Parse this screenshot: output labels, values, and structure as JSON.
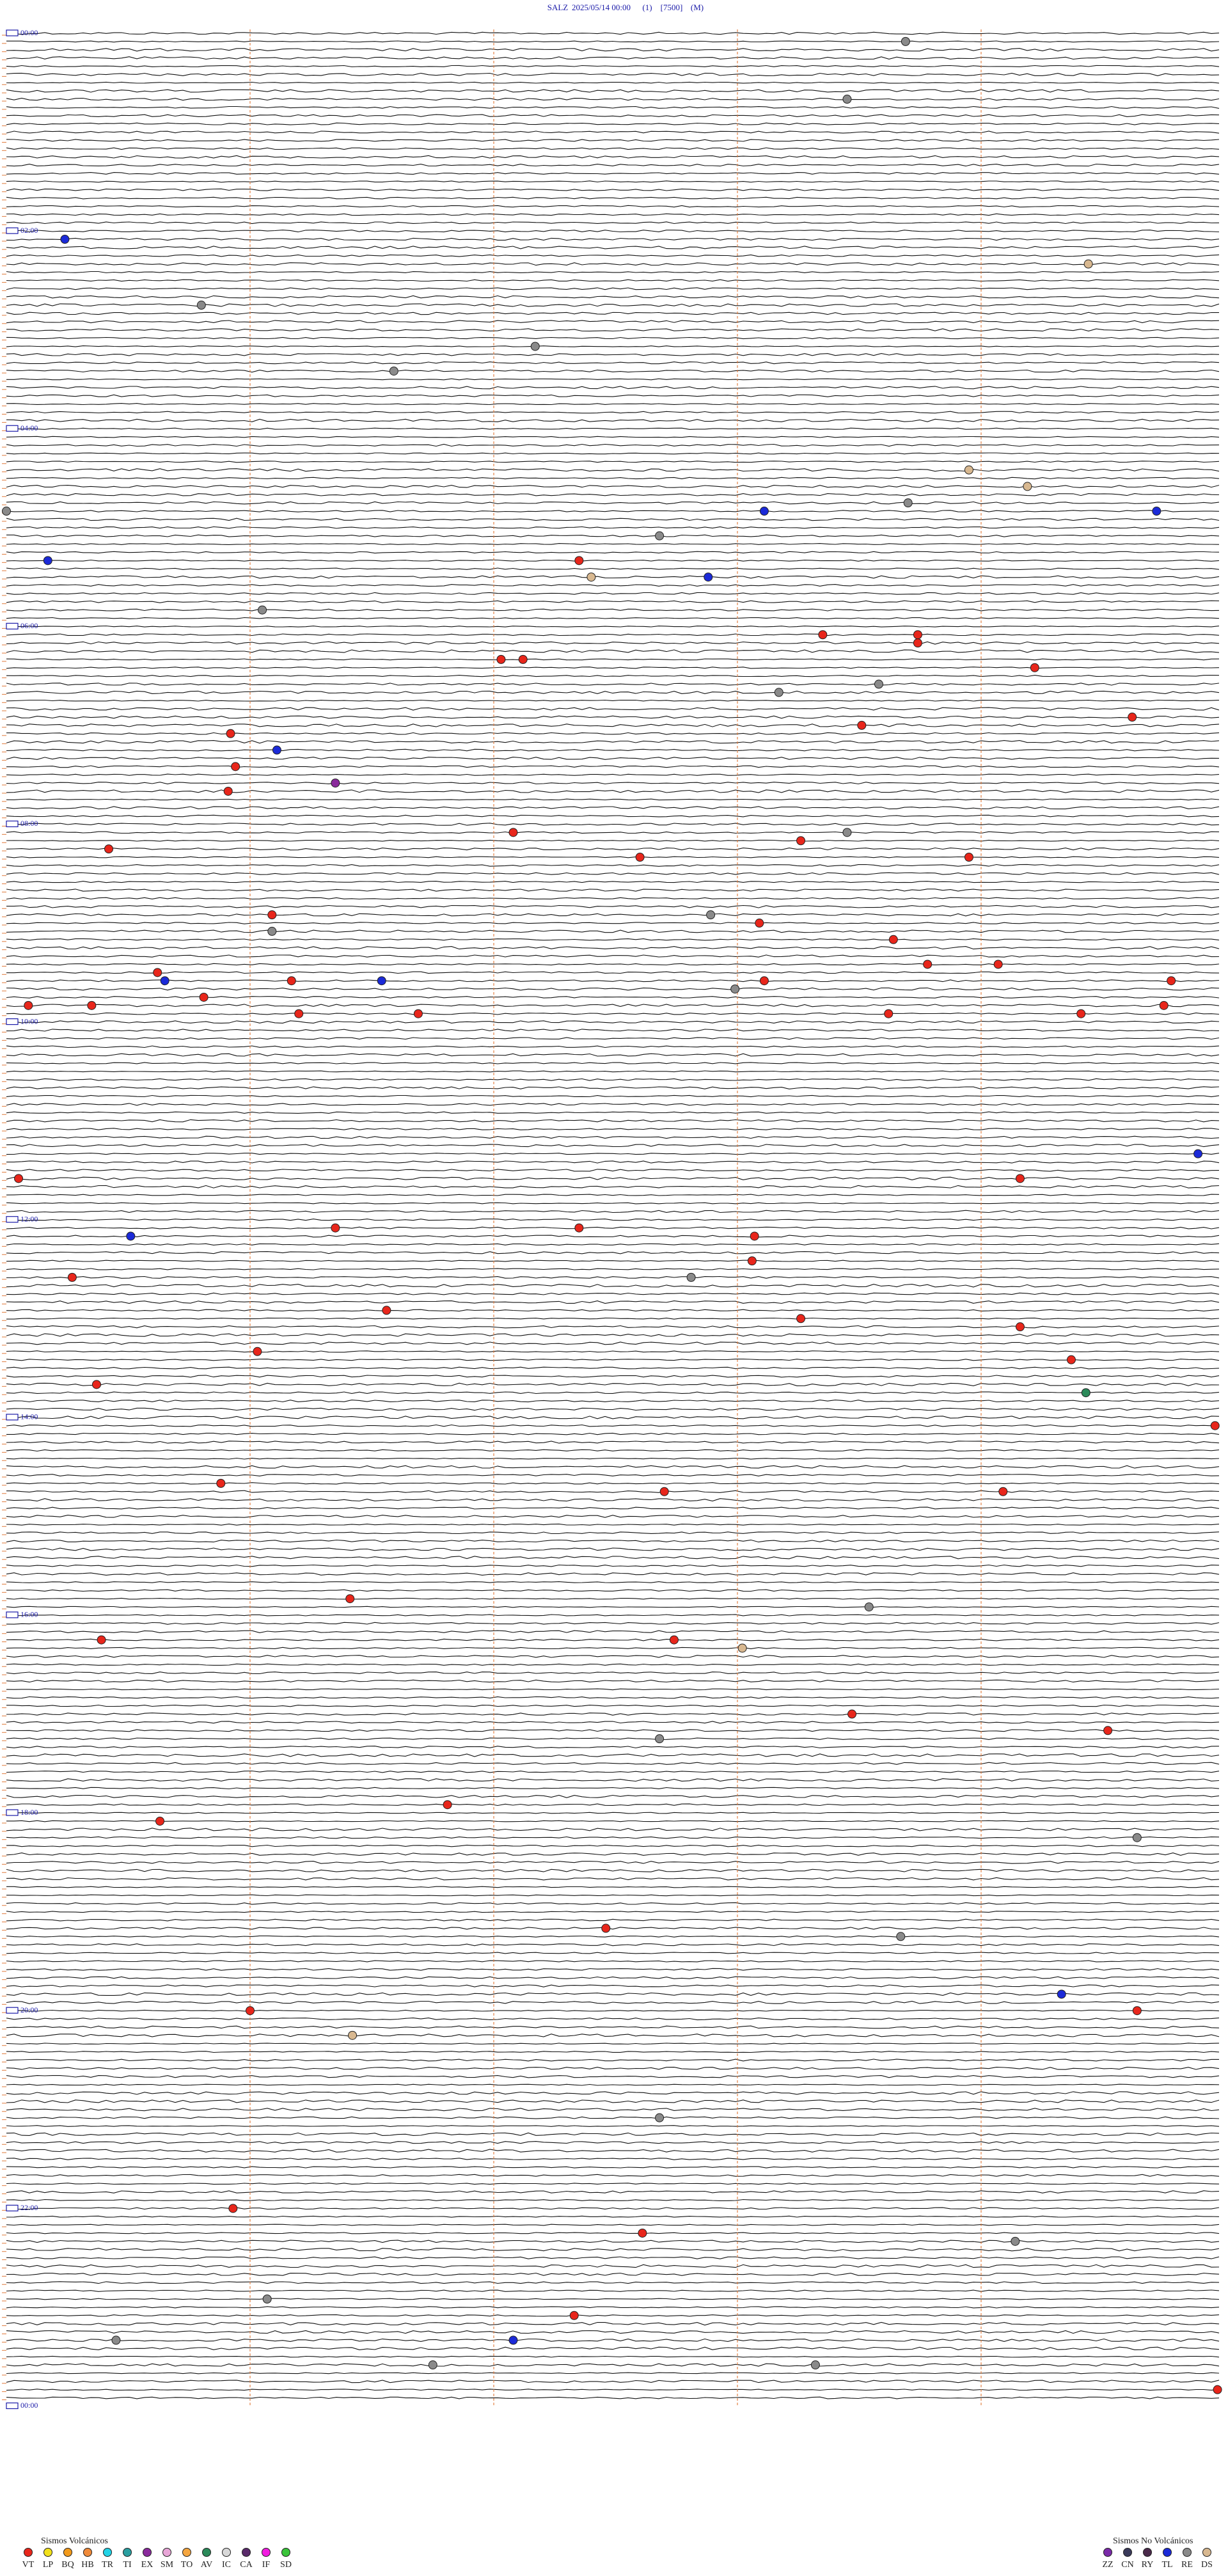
{
  "header": {
    "station": "SALZ",
    "datetime": "2025/05/14 00:00",
    "channel": "(1)",
    "scale": "[7500]",
    "mode": "(M)"
  },
  "time_labels": [
    "00:00",
    "02:00",
    "04:00",
    "06:00",
    "08:00",
    "10:00",
    "12:00",
    "14:00",
    "16:00",
    "18:00",
    "20:00",
    "22:00",
    "00:00"
  ],
  "legend": {
    "volcanic_title": "Sismos Volcánicos",
    "volcanic": [
      {
        "code": "VT",
        "color": "#e8261b"
      },
      {
        "code": "LP",
        "color": "#f2e11b"
      },
      {
        "code": "BQ",
        "color": "#f29a1b"
      },
      {
        "code": "HB",
        "color": "#f08a3a"
      },
      {
        "code": "TR",
        "color": "#22d3e6"
      },
      {
        "code": "TI",
        "color": "#2a9fa0"
      },
      {
        "code": "EX",
        "color": "#8a2a9c"
      },
      {
        "code": "SM",
        "color": "#e9a6d8"
      },
      {
        "code": "TO",
        "color": "#f5a640"
      },
      {
        "code": "AV",
        "color": "#2b8a5a"
      },
      {
        "code": "IC",
        "color": "#d8d8d8"
      },
      {
        "code": "CA",
        "color": "#5a2a6a"
      },
      {
        "code": "IF",
        "color": "#f21be0"
      },
      {
        "code": "SD",
        "color": "#3ac43a"
      }
    ],
    "non_volcanic_title": "Sismos No Volcánicos",
    "non_volcanic": [
      {
        "code": "ZZ",
        "color": "#7a2aa8"
      },
      {
        "code": "CN",
        "color": "#3a3a5a"
      },
      {
        "code": "RY",
        "color": "#4a2a4a"
      },
      {
        "code": "TL",
        "color": "#1b2ad8"
      },
      {
        "code": "RE",
        "color": "#8a8a8a"
      },
      {
        "code": "DS",
        "color": "#d8b890"
      }
    ]
  },
  "events": [
    {
      "type": "RE",
      "row": 1,
      "minute": 3.69
    },
    {
      "type": "RE",
      "row": 8,
      "minute": 3.45
    },
    {
      "type": "TL",
      "row": 25,
      "minute": 0.24
    },
    {
      "type": "DS",
      "row": 28,
      "minute": 4.44
    },
    {
      "type": "RE",
      "row": 33,
      "minute": 0.8
    },
    {
      "type": "RE",
      "row": 38,
      "minute": 2.17
    },
    {
      "type": "RE",
      "row": 41,
      "minute": 1.59
    },
    {
      "type": "DS",
      "row": 53,
      "minute": 3.95
    },
    {
      "type": "DS",
      "row": 55,
      "minute": 4.19
    },
    {
      "type": "RE",
      "row": 58,
      "minute": 0
    },
    {
      "type": "TL",
      "row": 58,
      "minute": 3.11
    },
    {
      "type": "RE",
      "row": 57,
      "minute": 3.7
    },
    {
      "type": "TL",
      "row": 58,
      "minute": 4.72
    },
    {
      "type": "RE",
      "row": 61,
      "minute": 2.68
    },
    {
      "type": "TL",
      "row": 64,
      "minute": 0.17
    },
    {
      "type": "VT",
      "row": 64,
      "minute": 2.35
    },
    {
      "type": "TL",
      "row": 66,
      "minute": 2.88
    },
    {
      "type": "DS",
      "row": 66,
      "minute": 2.4
    },
    {
      "type": "RE",
      "row": 70,
      "minute": 1.05
    },
    {
      "type": "VT",
      "row": 73,
      "minute": 3.35
    },
    {
      "type": "VT",
      "row": 73,
      "minute": 3.74
    },
    {
      "type": "VT",
      "row": 74,
      "minute": 3.74
    },
    {
      "type": "VT",
      "row": 76,
      "minute": 2.03
    },
    {
      "type": "VT",
      "row": 76,
      "minute": 2.12
    },
    {
      "type": "VT",
      "row": 77,
      "minute": 4.22
    },
    {
      "type": "RE",
      "row": 79,
      "minute": 3.58
    },
    {
      "type": "RE",
      "row": 80,
      "minute": 3.17
    },
    {
      "type": "VT",
      "row": 83,
      "minute": 4.62
    },
    {
      "type": "VT",
      "row": 84,
      "minute": 3.51
    },
    {
      "type": "VT",
      "row": 85,
      "minute": 0.92
    },
    {
      "type": "TL",
      "row": 87,
      "minute": 1.11
    },
    {
      "type": "VT",
      "row": 89,
      "minute": 0.94
    },
    {
      "type": "EX",
      "row": 91,
      "minute": 1.35
    },
    {
      "type": "VT",
      "row": 92,
      "minute": 0.91
    },
    {
      "type": "VT",
      "row": 97,
      "minute": 2.08
    },
    {
      "type": "VT",
      "row": 99,
      "minute": 0.42
    },
    {
      "type": "RE",
      "row": 97,
      "minute": 3.45
    },
    {
      "type": "VT",
      "row": 98,
      "minute": 3.26
    },
    {
      "type": "VT",
      "row": 100,
      "minute": 2.6
    },
    {
      "type": "VT",
      "row": 100,
      "minute": 3.95
    },
    {
      "type": "RE",
      "row": 107,
      "minute": 2.89
    },
    {
      "type": "VT",
      "row": 107,
      "minute": 1.09
    },
    {
      "type": "RE",
      "row": 109,
      "minute": 1.09
    },
    {
      "type": "VT",
      "row": 108,
      "minute": 3.09
    },
    {
      "type": "VT",
      "row": 110,
      "minute": 3.64
    },
    {
      "type": "VT",
      "row": 114,
      "minute": 0.62
    },
    {
      "type": "TL",
      "row": 115,
      "minute": 0.65
    },
    {
      "type": "TL",
      "row": 115,
      "minute": 1.54
    },
    {
      "type": "VT",
      "row": 115,
      "minute": 1.17
    },
    {
      "type": "VT",
      "row": 115,
      "minute": 3.11
    },
    {
      "type": "VT",
      "row": 113,
      "minute": 3.78
    },
    {
      "type": "VT",
      "row": 113,
      "minute": 4.07
    },
    {
      "type": "RE",
      "row": 116,
      "minute": 2.99
    },
    {
      "type": "VT",
      "row": 115,
      "minute": 4.78
    },
    {
      "type": "VT",
      "row": 118,
      "minute": 0.09
    },
    {
      "type": "VT",
      "row": 118,
      "minute": 0.35
    },
    {
      "type": "VT",
      "row": 117,
      "minute": 0.81
    },
    {
      "type": "VT",
      "row": 119,
      "minute": 1.69
    },
    {
      "type": "VT",
      "row": 119,
      "minute": 1.2
    },
    {
      "type": "VT",
      "row": 119,
      "minute": 3.62
    },
    {
      "type": "VT",
      "row": 119,
      "minute": 4.41
    },
    {
      "type": "VT",
      "row": 118,
      "minute": 4.75
    },
    {
      "type": "TL",
      "row": 146,
      "minute": 0.51
    },
    {
      "type": "VT",
      "row": 139,
      "minute": 0.05
    },
    {
      "type": "TL",
      "row": 136,
      "minute": 4.89
    },
    {
      "type": "VT",
      "row": 139,
      "minute": 4.16
    },
    {
      "type": "VT",
      "row": 145,
      "minute": 2.35
    },
    {
      "type": "VT",
      "row": 145,
      "minute": 1.35
    },
    {
      "type": "VT",
      "row": 146,
      "minute": 3.07
    },
    {
      "type": "VT",
      "row": 151,
      "minute": 0.27
    },
    {
      "type": "RE",
      "row": 151,
      "minute": 2.81
    },
    {
      "type": "VT",
      "row": 149,
      "minute": 3.06
    },
    {
      "type": "VT",
      "row": 155,
      "minute": 1.56
    },
    {
      "type": "VT",
      "row": 156,
      "minute": 3.26
    },
    {
      "type": "VT",
      "row": 157,
      "minute": 4.16
    },
    {
      "type": "VT",
      "row": 160,
      "minute": 1.03
    },
    {
      "type": "VT",
      "row": 161,
      "minute": 4.37
    },
    {
      "type": "AV",
      "row": 165,
      "minute": 4.43
    },
    {
      "type": "VT",
      "row": 164,
      "minute": 0.37
    },
    {
      "type": "VT",
      "row": 169,
      "minute": 4.96
    },
    {
      "type": "VT",
      "row": 176,
      "minute": 0.88
    },
    {
      "type": "VT",
      "row": 177,
      "minute": 2.7
    },
    {
      "type": "VT",
      "row": 177,
      "minute": 4.09
    },
    {
      "type": "VT",
      "row": 190,
      "minute": 1.41
    },
    {
      "type": "RE",
      "row": 191,
      "minute": 3.54
    },
    {
      "type": "VT",
      "row": 195,
      "minute": 0.39
    },
    {
      "type": "DS",
      "row": 196,
      "minute": 3.02
    },
    {
      "type": "VT",
      "row": 195,
      "minute": 2.74
    },
    {
      "type": "VT",
      "row": 204,
      "minute": 3.47
    },
    {
      "type": "RE",
      "row": 207,
      "minute": 2.68
    },
    {
      "type": "VT",
      "row": 206,
      "minute": 4.52
    },
    {
      "type": "VT",
      "row": 215,
      "minute": 1.81
    },
    {
      "type": "VT",
      "row": 217,
      "minute": 0.63
    },
    {
      "type": "RE",
      "row": 219,
      "minute": 4.64
    },
    {
      "type": "VT",
      "row": 230,
      "minute": 2.46
    },
    {
      "type": "RE",
      "row": 231,
      "minute": 3.67
    },
    {
      "type": "TL",
      "row": 238,
      "minute": 4.33
    },
    {
      "type": "VT",
      "row": 240,
      "minute": 1.0
    },
    {
      "type": "VT",
      "row": 240,
      "minute": 4.64
    },
    {
      "type": "DS",
      "row": 243,
      "minute": 1.42
    },
    {
      "type": "RE",
      "row": 253,
      "minute": 2.68
    },
    {
      "type": "VT",
      "row": 264,
      "minute": 0.93
    },
    {
      "type": "VT",
      "row": 267,
      "minute": 2.61
    },
    {
      "type": "RE",
      "row": 268,
      "minute": 4.14
    },
    {
      "type": "RE",
      "row": 275,
      "minute": 1.07
    },
    {
      "type": "VT",
      "row": 277,
      "minute": 2.33
    },
    {
      "type": "TL",
      "row": 280,
      "minute": 2.08
    },
    {
      "type": "RE",
      "row": 280,
      "minute": 0.45
    },
    {
      "type": "RE",
      "row": 283,
      "minute": 1.75
    },
    {
      "type": "RE",
      "row": 283,
      "minute": 3.32
    },
    {
      "type": "VT",
      "row": 286,
      "minute": 4.97
    }
  ]
}
